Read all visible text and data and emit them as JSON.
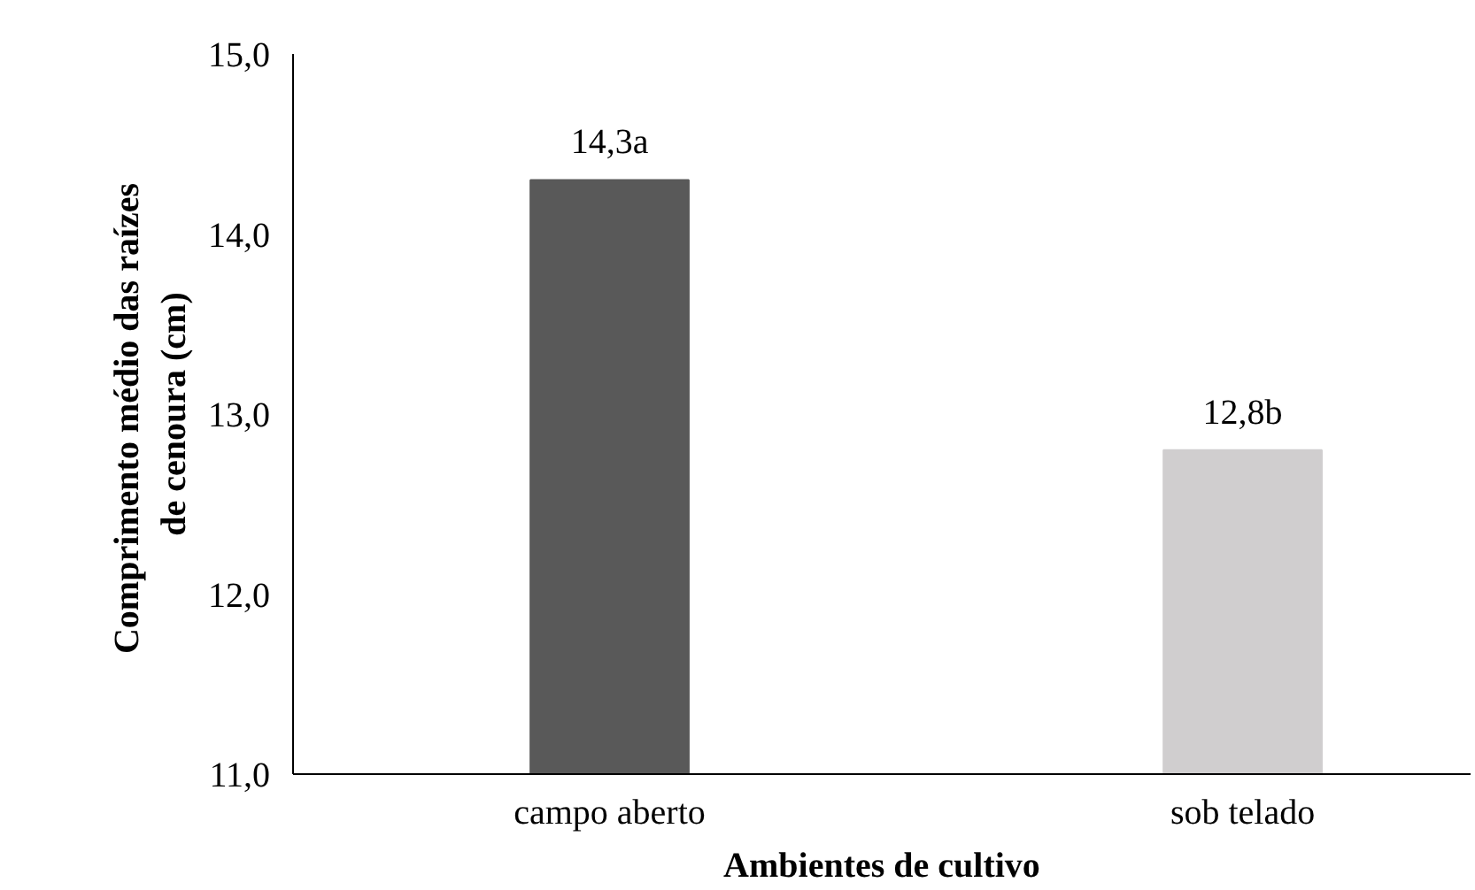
{
  "chart_data": {
    "type": "bar",
    "xlabel": "Ambientes de cultivo",
    "ylabel": "Comprimento  médio das raízes\nde cenoura (cm)",
    "categories": [
      "campo aberto",
      "sob telado"
    ],
    "values": [
      14.3,
      12.8
    ],
    "colors": [
      "#595959",
      "#d0cecf"
    ],
    "value_labels": [
      "14,3a",
      "12,8b"
    ],
    "ylim": [
      11,
      15
    ],
    "yticks": [
      {
        "value": 11,
        "label": "11,0"
      },
      {
        "value": 12,
        "label": "12,0"
      },
      {
        "value": 13,
        "label": "13,0"
      },
      {
        "value": 14,
        "label": "14,0"
      },
      {
        "value": 15,
        "label": "15,0"
      }
    ],
    "grid": false
  }
}
